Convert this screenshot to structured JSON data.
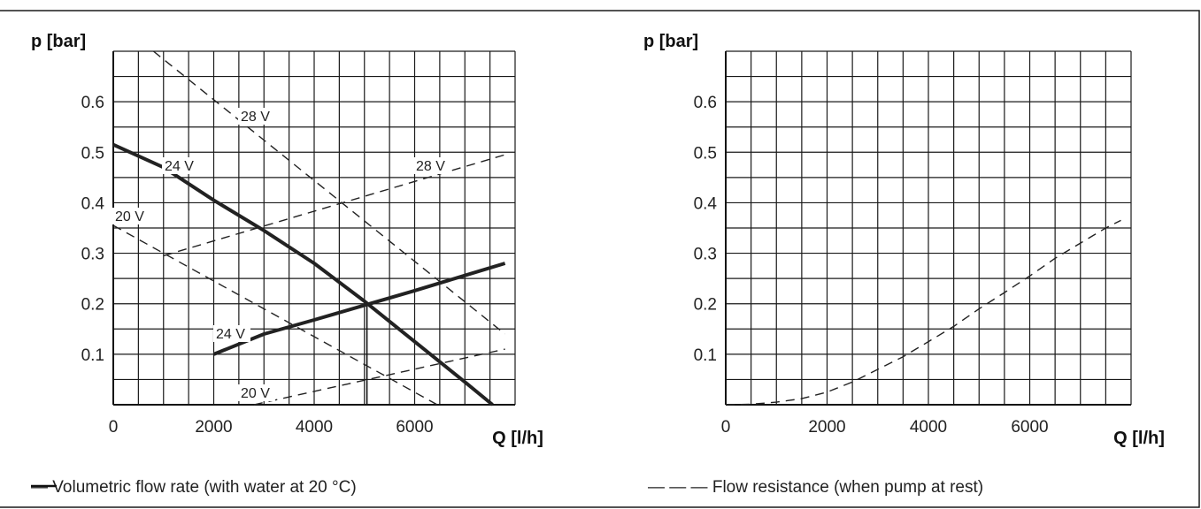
{
  "chart_data": [
    {
      "type": "line",
      "ylabel": "p [bar]",
      "xlabel": "Q [l/h]",
      "x_ticks": [
        "0",
        "2000",
        "4000",
        "6000"
      ],
      "y_ticks": [
        "0.6",
        "0.5",
        "0.4",
        "0.3",
        "0.2",
        "0.1"
      ],
      "xlim": [
        0,
        8000
      ],
      "ylim": [
        0,
        0.7
      ],
      "grid": true,
      "series": [
        {
          "name": "24 V",
          "style": "solid",
          "points": [
            [
              0,
              0.515
            ],
            [
              1000,
              0.47
            ],
            [
              2000,
              0.405
            ],
            [
              3000,
              0.345
            ],
            [
              4000,
              0.28
            ],
            [
              5000,
              0.205
            ],
            [
              6000,
              0.125
            ],
            [
              7000,
              0.045
            ],
            [
              7550,
              0.0
            ]
          ]
        },
        {
          "name": "24 V",
          "style": "solid",
          "points": [
            [
              2000,
              0.1
            ],
            [
              3000,
              0.14
            ],
            [
              4000,
              0.168
            ],
            [
              5000,
              0.197
            ],
            [
              6000,
              0.226
            ],
            [
              7000,
              0.256
            ],
            [
              7800,
              0.28
            ]
          ]
        },
        {
          "name": "28 V",
          "style": "dashed",
          "points": [
            [
              800,
              0.7
            ],
            [
              7800,
              0.14
            ]
          ]
        },
        {
          "name": "28 V",
          "style": "dashed",
          "points": [
            [
              1000,
              0.295
            ],
            [
              7800,
              0.495
            ]
          ]
        },
        {
          "name": "20 V",
          "style": "dashed",
          "points": [
            [
              0,
              0.355
            ],
            [
              6450,
              0.0
            ]
          ]
        },
        {
          "name": "20 V",
          "style": "dashed",
          "points": [
            [
              2800,
              0.0
            ],
            [
              7800,
              0.11
            ]
          ]
        }
      ],
      "marker_x": 5050,
      "legend": "— Volumetric flow rate (with water at 20 °C)"
    },
    {
      "type": "line",
      "ylabel": "p [bar]",
      "xlabel": "Q [l/h]",
      "x_ticks": [
        "0",
        "2000",
        "4000",
        "6000"
      ],
      "y_ticks": [
        "0.6",
        "0.5",
        "0.4",
        "0.3",
        "0.2",
        "0.1"
      ],
      "xlim": [
        0,
        8000
      ],
      "ylim": [
        0,
        0.7
      ],
      "grid": true,
      "series": [
        {
          "style": "dashed",
          "points": [
            [
              0,
              0.0
            ],
            [
              500,
              0.001
            ],
            [
              1000,
              0.005
            ],
            [
              1500,
              0.012
            ],
            [
              2000,
              0.025
            ],
            [
              2500,
              0.045
            ],
            [
              3000,
              0.07
            ],
            [
              3500,
              0.095
            ],
            [
              4000,
              0.125
            ],
            [
              4500,
              0.155
            ],
            [
              5000,
              0.19
            ],
            [
              5500,
              0.222
            ],
            [
              6000,
              0.255
            ],
            [
              6500,
              0.29
            ],
            [
              7000,
              0.32
            ],
            [
              7500,
              0.35
            ],
            [
              7800,
              0.365
            ]
          ]
        }
      ],
      "legend": "— — — Flow resistance (when pump at rest)"
    }
  ]
}
